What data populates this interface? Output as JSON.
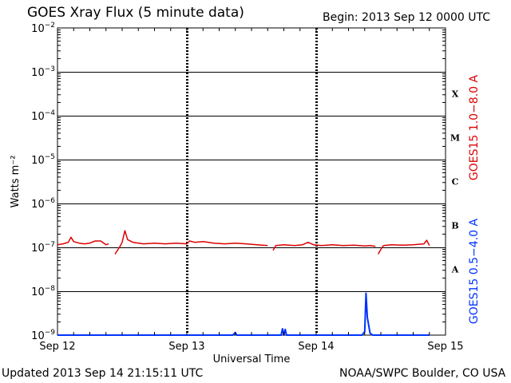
{
  "header": {
    "title": "GOES Xray Flux (5 minute data)",
    "begin": "Begin:  2013 Sep 12 0000 UTC"
  },
  "footer": {
    "updated": "Updated 2013 Sep 14 21:15:11 UTC",
    "credit": "NOAA/SWPC Boulder, CO USA"
  },
  "colors": {
    "long_channel": "#dd0000",
    "short_channel": "#0033ff",
    "axis": "#000000"
  },
  "chart_data": {
    "type": "line",
    "title": "GOES Xray Flux (5 minute data)",
    "xlabel": "Universal Time",
    "ylabel": "Watts m⁻²",
    "y_scale": "log",
    "ylim": [
      1e-09,
      0.01
    ],
    "xlim": [
      "2013-09-12T00:00",
      "2013-09-15T00:00"
    ],
    "x_ticks": [
      {
        "x": "2013-09-12T00:00",
        "label": "Sep 12"
      },
      {
        "x": "2013-09-13T00:00",
        "label": "Sep 13"
      },
      {
        "x": "2013-09-14T00:00",
        "label": "Sep 14"
      },
      {
        "x": "2013-09-15T00:00",
        "label": "Sep 15"
      }
    ],
    "y_ticks": [
      {
        "v": 1e-09,
        "base": "10",
        "exp": "−9"
      },
      {
        "v": 1e-08,
        "base": "10",
        "exp": "−8"
      },
      {
        "v": 1e-07,
        "base": "10",
        "exp": "−7"
      },
      {
        "v": 1e-06,
        "base": "10",
        "exp": "−6"
      },
      {
        "v": 1e-05,
        "base": "10",
        "exp": "−5"
      },
      {
        "v": 0.0001,
        "base": "10",
        "exp": "−4"
      },
      {
        "v": 0.001,
        "base": "10",
        "exp": "−3"
      },
      {
        "v": 0.01,
        "base": "10",
        "exp": "−2"
      }
    ],
    "flare_classes": [
      {
        "label": "A",
        "lo": 1e-08,
        "hi": 1e-07
      },
      {
        "label": "B",
        "lo": 1e-07,
        "hi": 1e-06
      },
      {
        "label": "C",
        "lo": 1e-06,
        "hi": 1e-05
      },
      {
        "label": "M",
        "lo": 1e-05,
        "hi": 0.0001
      },
      {
        "label": "X",
        "lo": 0.0001,
        "hi": 0.001
      }
    ],
    "series": [
      {
        "name": "GOES15 1.0−8.0 A",
        "color": "#dd0000",
        "points": [
          [
            "2013-09-12T00:00",
            1.15e-07
          ],
          [
            "2013-09-12T01:00",
            1.2e-07
          ],
          [
            "2013-09-12T02:00",
            1.3e-07
          ],
          [
            "2013-09-12T02:30",
            1.7e-07
          ],
          [
            "2013-09-12T03:00",
            1.35e-07
          ],
          [
            "2013-09-12T04:00",
            1.25e-07
          ],
          [
            "2013-09-12T05:00",
            1.2e-07
          ],
          [
            "2013-09-12T06:00",
            1.25e-07
          ],
          [
            "2013-09-12T07:00",
            1.4e-07
          ],
          [
            "2013-09-12T08:00",
            1.4e-07
          ],
          [
            "2013-09-12T09:00",
            1.15e-07
          ],
          [
            "2013-09-12T09:30",
            1.2e-07
          ],
          [
            "2013-09-12T10:30",
            null
          ],
          [
            "2013-09-12T10:40",
            7e-08
          ],
          [
            "2013-09-12T11:30",
            1e-07
          ],
          [
            "2013-09-12T12:00",
            1.3e-07
          ],
          [
            "2013-09-12T12:30",
            2.4e-07
          ],
          [
            "2013-09-12T13:00",
            1.5e-07
          ],
          [
            "2013-09-12T14:00",
            1.3e-07
          ],
          [
            "2013-09-12T16:00",
            1.2e-07
          ],
          [
            "2013-09-12T18:00",
            1.25e-07
          ],
          [
            "2013-09-12T20:00",
            1.2e-07
          ],
          [
            "2013-09-12T22:00",
            1.25e-07
          ],
          [
            "2013-09-13T00:00",
            1.2e-07
          ],
          [
            "2013-09-13T00:30",
            1.4e-07
          ],
          [
            "2013-09-13T01:30",
            1.3e-07
          ],
          [
            "2013-09-13T03:00",
            1.35e-07
          ],
          [
            "2013-09-13T05:00",
            1.25e-07
          ],
          [
            "2013-09-13T07:00",
            1.2e-07
          ],
          [
            "2013-09-13T09:00",
            1.25e-07
          ],
          [
            "2013-09-13T11:00",
            1.2e-07
          ],
          [
            "2013-09-13T13:00",
            1.15e-07
          ],
          [
            "2013-09-13T15:00",
            1.1e-07
          ],
          [
            "2013-09-13T15:45",
            null
          ],
          [
            "2013-09-13T16:00",
            8.5e-08
          ],
          [
            "2013-09-13T16:30",
            1.1e-07
          ],
          [
            "2013-09-13T18:00",
            1.15e-07
          ],
          [
            "2013-09-13T20:00",
            1.1e-07
          ],
          [
            "2013-09-13T21:30",
            1.15e-07
          ],
          [
            "2013-09-13T22:30",
            1.3e-07
          ],
          [
            "2013-09-13T23:30",
            1.15e-07
          ],
          [
            "2013-09-14T01:00",
            1.1e-07
          ],
          [
            "2013-09-14T03:00",
            1.15e-07
          ],
          [
            "2013-09-14T05:00",
            1.1e-07
          ],
          [
            "2013-09-14T07:00",
            1.12e-07
          ],
          [
            "2013-09-14T09:00",
            1.08e-07
          ],
          [
            "2013-09-14T10:00",
            1.1e-07
          ],
          [
            "2013-09-14T11:00",
            1.05e-07
          ],
          [
            "2013-09-14T11:15",
            null
          ],
          [
            "2013-09-14T11:30",
            7e-08
          ],
          [
            "2013-09-14T12:00",
            9e-08
          ],
          [
            "2013-09-14T12:30",
            1.1e-07
          ],
          [
            "2013-09-14T14:00",
            1.15e-07
          ],
          [
            "2013-09-14T16:00",
            1.12e-07
          ],
          [
            "2013-09-14T18:00",
            1.15e-07
          ],
          [
            "2013-09-14T20:00",
            1.2e-07
          ],
          [
            "2013-09-14T20:30",
            1.45e-07
          ],
          [
            "2013-09-14T21:00",
            1.1e-07
          ]
        ]
      },
      {
        "name": "GOES15 0.5−4.0 A",
        "color": "#0033ff",
        "points": [
          [
            "2013-09-12T00:00",
            8e-10
          ],
          [
            "2013-09-12T02:00",
            8.2e-10
          ],
          [
            "2013-09-12T02:30",
            1e-09
          ],
          [
            "2013-09-12T03:00",
            8.2e-10
          ],
          [
            "2013-09-12T07:00",
            8.3e-10
          ],
          [
            "2013-09-12T07:30",
            9.5e-10
          ],
          [
            "2013-09-12T08:00",
            8.2e-10
          ],
          [
            "2013-09-12T12:30",
            9e-10
          ],
          [
            "2013-09-12T13:00",
            8.1e-10
          ],
          [
            "2013-09-13T00:00",
            8.1e-10
          ],
          [
            "2013-09-13T08:30",
            8.1e-10
          ],
          [
            "2013-09-13T09:00",
            1.15e-09
          ],
          [
            "2013-09-13T09:15",
            8.1e-10
          ],
          [
            "2013-09-13T10:00",
            8.2e-10
          ],
          [
            "2013-09-13T10:30",
            9e-10
          ],
          [
            "2013-09-13T11:00",
            8.2e-10
          ],
          [
            "2013-09-13T17:30",
            8.3e-10
          ],
          [
            "2013-09-13T17:45",
            1.4e-09
          ],
          [
            "2013-09-13T18:00",
            8.5e-10
          ],
          [
            "2013-09-13T18:15",
            1.35e-09
          ],
          [
            "2013-09-13T18:30",
            8.3e-10
          ],
          [
            "2013-09-13T21:00",
            8.3e-10
          ],
          [
            "2013-09-13T21:15",
            9.5e-10
          ],
          [
            "2013-09-13T21:30",
            8.2e-10
          ],
          [
            "2013-09-14T08:30",
            8.2e-10
          ],
          [
            "2013-09-14T09:00",
            1.2e-09
          ],
          [
            "2013-09-14T09:15",
            9e-09
          ],
          [
            "2013-09-14T09:30",
            2.5e-09
          ],
          [
            "2013-09-14T10:00",
            1.1e-09
          ],
          [
            "2013-09-14T10:30",
            8.3e-10
          ],
          [
            "2013-09-14T21:00",
            8.2e-10
          ]
        ]
      }
    ]
  }
}
